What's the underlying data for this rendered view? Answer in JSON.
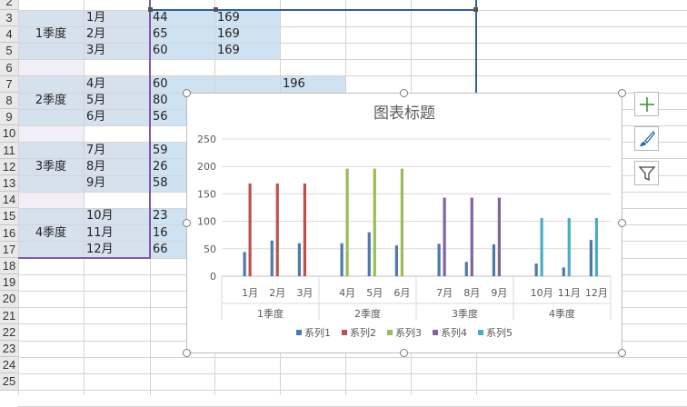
{
  "row_headers": [
    "2",
    "3",
    "4",
    "5",
    "6",
    "7",
    "8",
    "9",
    "10",
    "11",
    "12",
    "13",
    "14",
    "15",
    "16",
    "17",
    "18",
    "19",
    "20",
    "21",
    "22",
    "23",
    "24",
    "25"
  ],
  "quarters": [
    "1季度",
    "2季度",
    "3季度",
    "4季度"
  ],
  "months": [
    "1月",
    "2月",
    "3月",
    "4月",
    "5月",
    "6月",
    "7月",
    "8月",
    "9月",
    "10月",
    "11月",
    "12月"
  ],
  "col1_values": [
    "44",
    "65",
    "60",
    "60",
    "80",
    "56",
    "59",
    "26",
    "58",
    "23",
    "16",
    "66"
  ],
  "col2_values": [
    "169",
    "169",
    "169"
  ],
  "col3_values": [
    "196"
  ],
  "toolbar": {
    "add_icon": "plus-icon",
    "style_icon": "brush-icon",
    "filter_icon": "funnel-icon"
  },
  "chart_data": {
    "type": "bar",
    "title": "图表标题",
    "categories": [
      "1月",
      "2月",
      "3月",
      "4月",
      "5月",
      "6月",
      "7月",
      "8月",
      "9月",
      "10月",
      "11月",
      "12月"
    ],
    "groups": [
      "1季度",
      "2季度",
      "3季度",
      "4季度"
    ],
    "ylim": [
      0,
      250
    ],
    "yticks": [
      0,
      50,
      100,
      150,
      200,
      250
    ],
    "grid": true,
    "legend_position": "bottom",
    "series": [
      {
        "name": "系列1",
        "color": "#4e79a7",
        "values": [
          44,
          65,
          60,
          60,
          80,
          56,
          59,
          26,
          58,
          23,
          16,
          66
        ]
      },
      {
        "name": "系列2",
        "color": "#c0504d",
        "values": [
          169,
          169,
          169,
          null,
          null,
          null,
          null,
          null,
          null,
          null,
          null,
          null
        ]
      },
      {
        "name": "系列3",
        "color": "#9bbb59",
        "values": [
          null,
          null,
          null,
          196,
          196,
          196,
          null,
          null,
          null,
          null,
          null,
          null
        ]
      },
      {
        "name": "系列4",
        "color": "#8064a2",
        "values": [
          null,
          null,
          null,
          null,
          null,
          null,
          143,
          143,
          143,
          null,
          null,
          null
        ]
      },
      {
        "name": "系列5",
        "color": "#4bacc6",
        "values": [
          null,
          null,
          null,
          null,
          null,
          null,
          null,
          null,
          null,
          106,
          106,
          106
        ]
      }
    ]
  }
}
